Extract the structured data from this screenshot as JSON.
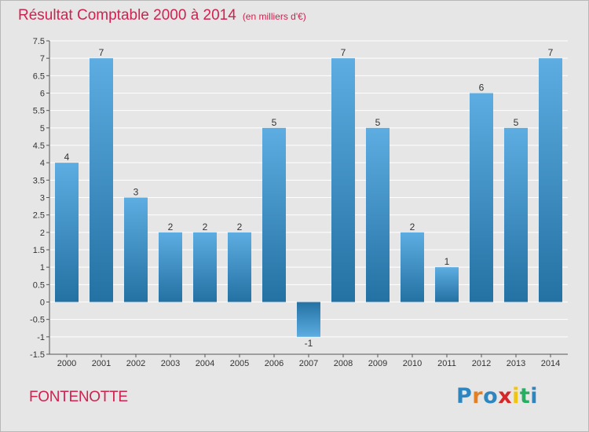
{
  "title": "Résultat Comptable 2000 à 2014",
  "subtitle": "(en milliers d'€)",
  "commune": "FONTENOTTE",
  "logo_text": "Proxiti",
  "logo_letters": [
    {
      "char": "P",
      "color": "#2e86c1"
    },
    {
      "char": "r",
      "color": "#e67e22"
    },
    {
      "char": "o",
      "color": "#2e86c1"
    },
    {
      "char": "x",
      "color": "#d62728"
    },
    {
      "char": "i",
      "color": "#f1c40f"
    },
    {
      "char": "t",
      "color": "#27ae60"
    },
    {
      "char": "i",
      "color": "#2e86c1"
    }
  ],
  "colors": {
    "title": "#d1214f",
    "bar_light": "#5dade2",
    "bar_dark": "#2471a3",
    "grid": "#ffffff",
    "background": "#e6e6e6"
  },
  "chart_data": {
    "type": "bar",
    "title": "Résultat Comptable 2000 à 2014",
    "subtitle": "(en milliers d'€)",
    "xlabel": "",
    "ylabel": "",
    "categories": [
      "2000",
      "2001",
      "2002",
      "2003",
      "2004",
      "2005",
      "2006",
      "2007",
      "2008",
      "2009",
      "2010",
      "2011",
      "2012",
      "2013",
      "2014"
    ],
    "values": [
      4,
      7,
      3,
      2,
      2,
      2,
      5,
      -1,
      7,
      5,
      2,
      1,
      6,
      5,
      7
    ],
    "value_labels": [
      "4",
      "7",
      "3",
      "2",
      "2",
      "2",
      "5",
      "-1",
      "7",
      "5",
      "2",
      "1",
      "6",
      "5",
      "7"
    ],
    "ylim": [
      -1.5,
      7.5
    ],
    "yticks": [
      7.5,
      7,
      6.5,
      6,
      5.5,
      5,
      4.5,
      4,
      3.5,
      3,
      2.5,
      2,
      1.5,
      1,
      0.5,
      0,
      -0.5,
      -1,
      -1.5
    ],
    "ytick_labels": [
      "7.5",
      "7",
      "6.5",
      "6",
      "5.5",
      "5",
      "4.5",
      "4",
      "3.5",
      "3",
      "2.5",
      "2",
      "1.5",
      "1",
      "0.5",
      "0",
      "-0.5",
      "-1",
      "-1.5"
    ],
    "grid": true
  }
}
